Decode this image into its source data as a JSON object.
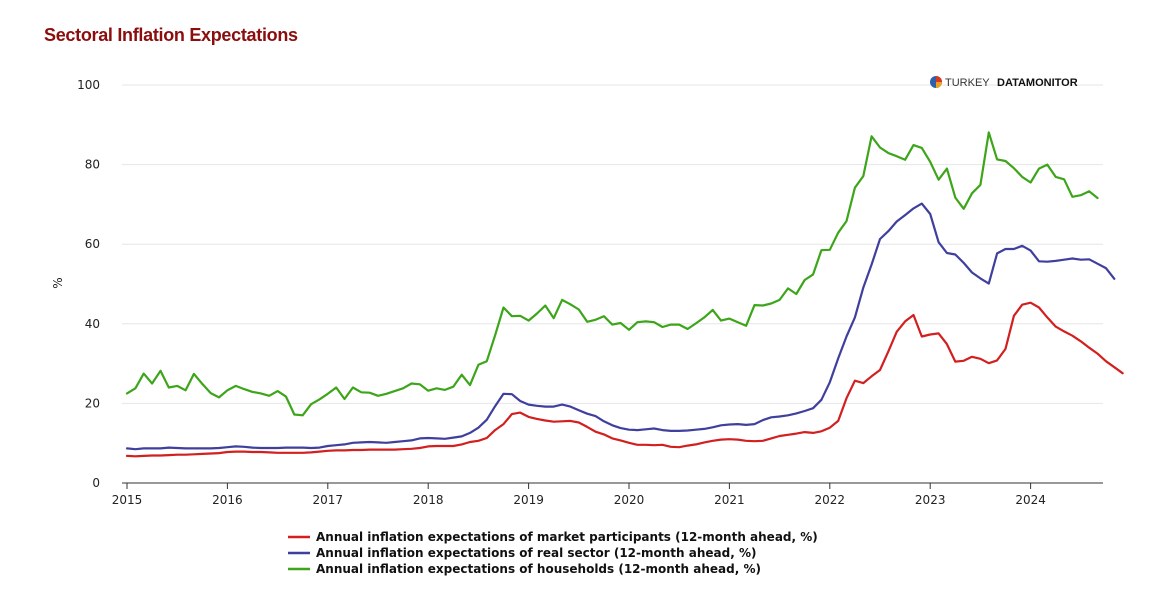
{
  "chart_data": {
    "type": "line",
    "title": "Sectoral Inflation Expectations",
    "ylabel": "%",
    "ylim": [
      0,
      100
    ],
    "yticks": [
      0,
      20,
      40,
      60,
      80,
      100
    ],
    "xlim": [
      2015,
      2024.75
    ],
    "xticks": [
      2015,
      2016,
      2017,
      2018,
      2019,
      2020,
      2021,
      2022,
      2023,
      2024
    ],
    "x_start": 2015,
    "x_step": 0.0833333,
    "grid": "horizontal",
    "legend_position": "bottom-center",
    "brand": {
      "light": "TURKEY",
      "bold": "DATAMONITOR"
    },
    "series": [
      {
        "name": "Annual inflation expectations of market participants (12-month ahead, %)",
        "color": "#d21f1f",
        "values": [
          6.8,
          6.7,
          6.8,
          6.9,
          6.9,
          7.0,
          7.1,
          7.1,
          7.2,
          7.3,
          7.4,
          7.5,
          7.8,
          7.9,
          7.9,
          7.8,
          7.8,
          7.7,
          7.6,
          7.6,
          7.6,
          7.6,
          7.7,
          7.9,
          8.1,
          8.2,
          8.2,
          8.3,
          8.3,
          8.4,
          8.4,
          8.4,
          8.4,
          8.5,
          8.6,
          8.8,
          9.2,
          9.3,
          9.3,
          9.3,
          9.7,
          10.3,
          10.6,
          11.3,
          13.3,
          14.8,
          17.3,
          17.7,
          16.6,
          16.1,
          15.7,
          15.4,
          15.5,
          15.6,
          15.2,
          14.1,
          12.9,
          12.2,
          11.2,
          10.7,
          10.1,
          9.6,
          9.6,
          9.5,
          9.6,
          9.1,
          9.0,
          9.4,
          9.7,
          10.2,
          10.6,
          10.9,
          11.0,
          10.9,
          10.6,
          10.5,
          10.6,
          11.2,
          11.8,
          12.1,
          12.4,
          12.8,
          12.6,
          13.0,
          13.9,
          15.6,
          21.3,
          25.7,
          25.1,
          26.8,
          28.4,
          33.1,
          38.0,
          40.6,
          42.2,
          36.8,
          37.3,
          37.6,
          34.9,
          30.5,
          30.7,
          31.7,
          31.2,
          30.1,
          30.8,
          33.7,
          42.0,
          44.8,
          45.3,
          44.1,
          41.6,
          39.3,
          38.1,
          37.0,
          35.6,
          34.0,
          32.5,
          30.6,
          29.1,
          27.6
        ]
      },
      {
        "name": "Annual inflation expectations of real sector (12-month ahead, %)",
        "color": "#3f3f9e",
        "values": [
          8.7,
          8.5,
          8.7,
          8.7,
          8.7,
          8.9,
          8.8,
          8.7,
          8.7,
          8.7,
          8.7,
          8.8,
          9.0,
          9.2,
          9.1,
          8.9,
          8.8,
          8.8,
          8.8,
          8.9,
          8.9,
          8.9,
          8.8,
          8.9,
          9.3,
          9.5,
          9.7,
          10.1,
          10.2,
          10.3,
          10.2,
          10.1,
          10.3,
          10.5,
          10.7,
          11.2,
          11.3,
          11.2,
          11.1,
          11.4,
          11.7,
          12.6,
          13.9,
          15.9,
          19.3,
          22.4,
          22.3,
          20.6,
          19.7,
          19.4,
          19.2,
          19.2,
          19.7,
          19.2,
          18.3,
          17.4,
          16.8,
          15.5,
          14.5,
          13.8,
          13.4,
          13.3,
          13.5,
          13.7,
          13.3,
          13.1,
          13.1,
          13.2,
          13.4,
          13.6,
          14.0,
          14.5,
          14.7,
          14.8,
          14.6,
          14.8,
          15.8,
          16.5,
          16.7,
          17.0,
          17.5,
          18.1,
          18.8,
          20.9,
          25.3,
          31.3,
          36.8,
          41.6,
          49.1,
          54.9,
          61.3,
          63.3,
          65.7,
          67.3,
          69.0,
          70.2,
          67.6,
          60.5,
          57.8,
          57.4,
          55.3,
          52.9,
          51.4,
          50.1,
          57.7,
          58.8,
          58.8,
          59.6,
          58.4,
          55.7,
          55.6,
          55.8,
          56.1,
          56.4,
          56.1,
          56.2,
          55.1,
          54.0,
          51.3
        ]
      },
      {
        "name": "Annual inflation expectations of households (12-month ahead, %)",
        "color": "#3da51a",
        "values": [
          22.5,
          23.8,
          27.5,
          25.0,
          28.2,
          24.0,
          24.4,
          23.3,
          27.4,
          24.9,
          22.6,
          21.5,
          23.3,
          24.4,
          23.6,
          22.9,
          22.5,
          21.9,
          23.1,
          21.7,
          17.2,
          17.0,
          19.8,
          21.0,
          22.4,
          24.0,
          21.1,
          24.0,
          22.8,
          22.7,
          21.9,
          22.4,
          23.1,
          23.8,
          25.0,
          24.8,
          23.2,
          23.8,
          23.4,
          24.2,
          27.2,
          24.6,
          29.7,
          30.6,
          37.1,
          44.1,
          41.9,
          42.0,
          40.8,
          42.6,
          44.6,
          41.4,
          46.0,
          44.9,
          43.6,
          40.5,
          41.0,
          41.9,
          39.8,
          40.2,
          38.5,
          40.4,
          40.6,
          40.4,
          39.2,
          39.8,
          39.8,
          38.7,
          40.1,
          41.6,
          43.5,
          40.8,
          41.3,
          40.4,
          39.5,
          44.7,
          44.6,
          45.1,
          46.0,
          48.9,
          47.5,
          51.0,
          52.4,
          58.5,
          58.6,
          62.9,
          65.8,
          74.2,
          77.1,
          87.1,
          84.3,
          82.9,
          82.1,
          81.2,
          84.9,
          84.2,
          80.7,
          76.2,
          79.0,
          71.7,
          68.9,
          72.8,
          74.9,
          88.1,
          81.3,
          80.9,
          79.1,
          76.9,
          75.5,
          79.0,
          80.0,
          76.9,
          76.3,
          71.9,
          72.3,
          73.3,
          71.6
        ]
      }
    ]
  }
}
